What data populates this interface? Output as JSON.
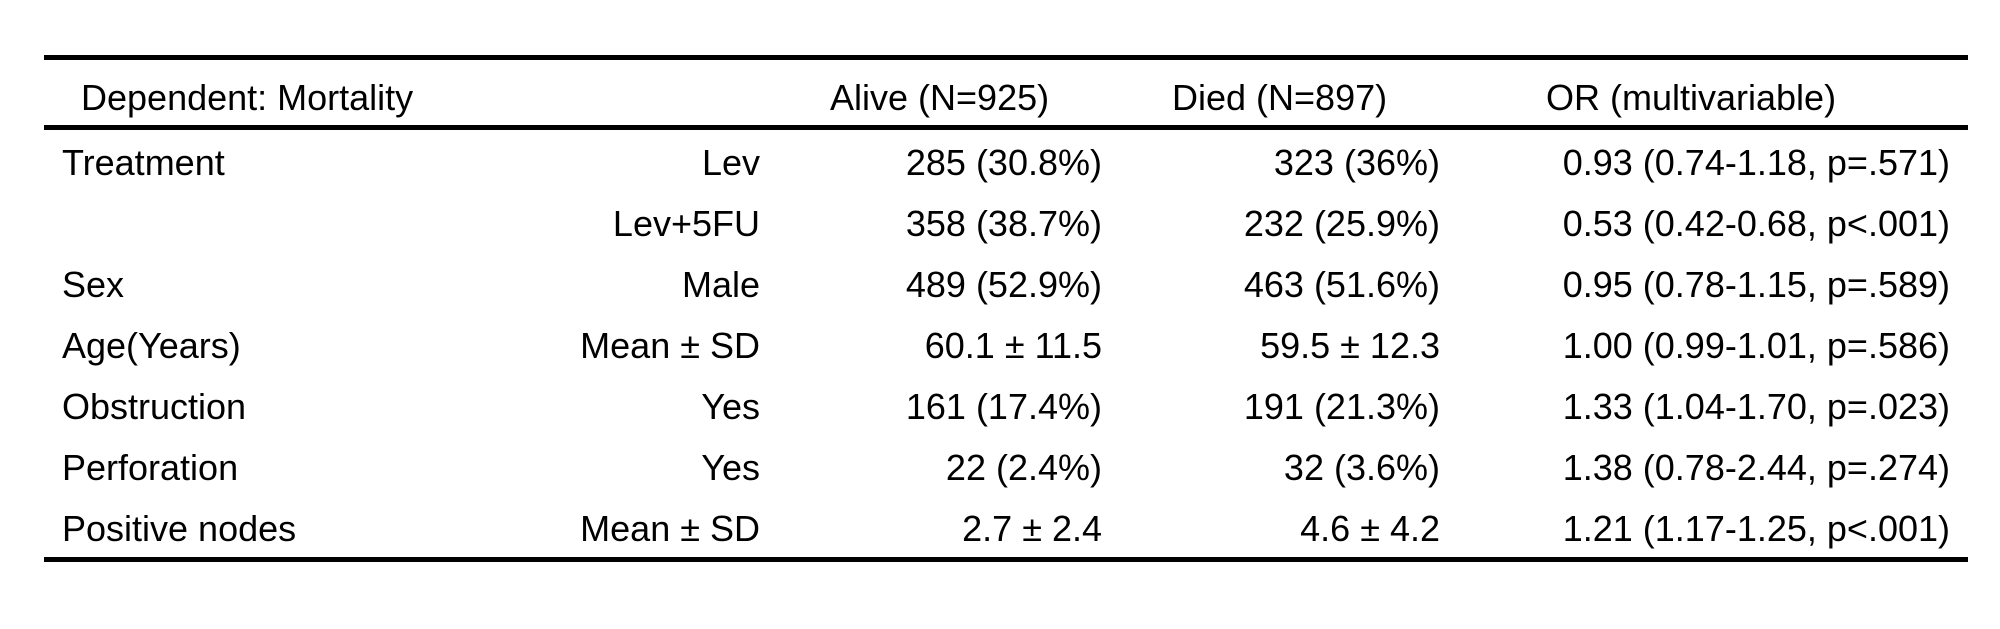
{
  "table": {
    "headers": {
      "dependent": "Dependent: Mortality",
      "alive": "Alive (N=925)",
      "died": "Died (N=897)",
      "or": "OR (multivariable)"
    },
    "rows": [
      {
        "variable": "Treatment",
        "level": "Lev",
        "alive": "285 (30.8%)",
        "died": "323 (36%)",
        "or": "0.93 (0.74-1.18, p=.571)"
      },
      {
        "variable": "",
        "level": "Lev+5FU",
        "alive": "358 (38.7%)",
        "died": "232 (25.9%)",
        "or": "0.53 (0.42-0.68, p<.001)"
      },
      {
        "variable": "Sex",
        "level": "Male",
        "alive": "489 (52.9%)",
        "died": "463 (51.6%)",
        "or": "0.95 (0.78-1.15, p=.589)"
      },
      {
        "variable": "Age(Years)",
        "level": "Mean ± SD",
        "alive": "60.1 ± 11.5",
        "died": "59.5 ± 12.3",
        "or": "1.00 (0.99-1.01, p=.586)"
      },
      {
        "variable": "Obstruction",
        "level": "Yes",
        "alive": "161 (17.4%)",
        "died": "191 (21.3%)",
        "or": "1.33 (1.04-1.70, p=.023)"
      },
      {
        "variable": "Perforation",
        "level": "Yes",
        "alive": "22 (2.4%)",
        "died": "32 (3.6%)",
        "or": "1.38 (0.78-2.44, p=.274)"
      },
      {
        "variable": "Positive nodes",
        "level": "Mean ± SD",
        "alive": "2.7 ± 2.4",
        "died": "4.6 ± 4.2",
        "or": "1.21 (1.17-1.25, p<.001)"
      }
    ]
  }
}
